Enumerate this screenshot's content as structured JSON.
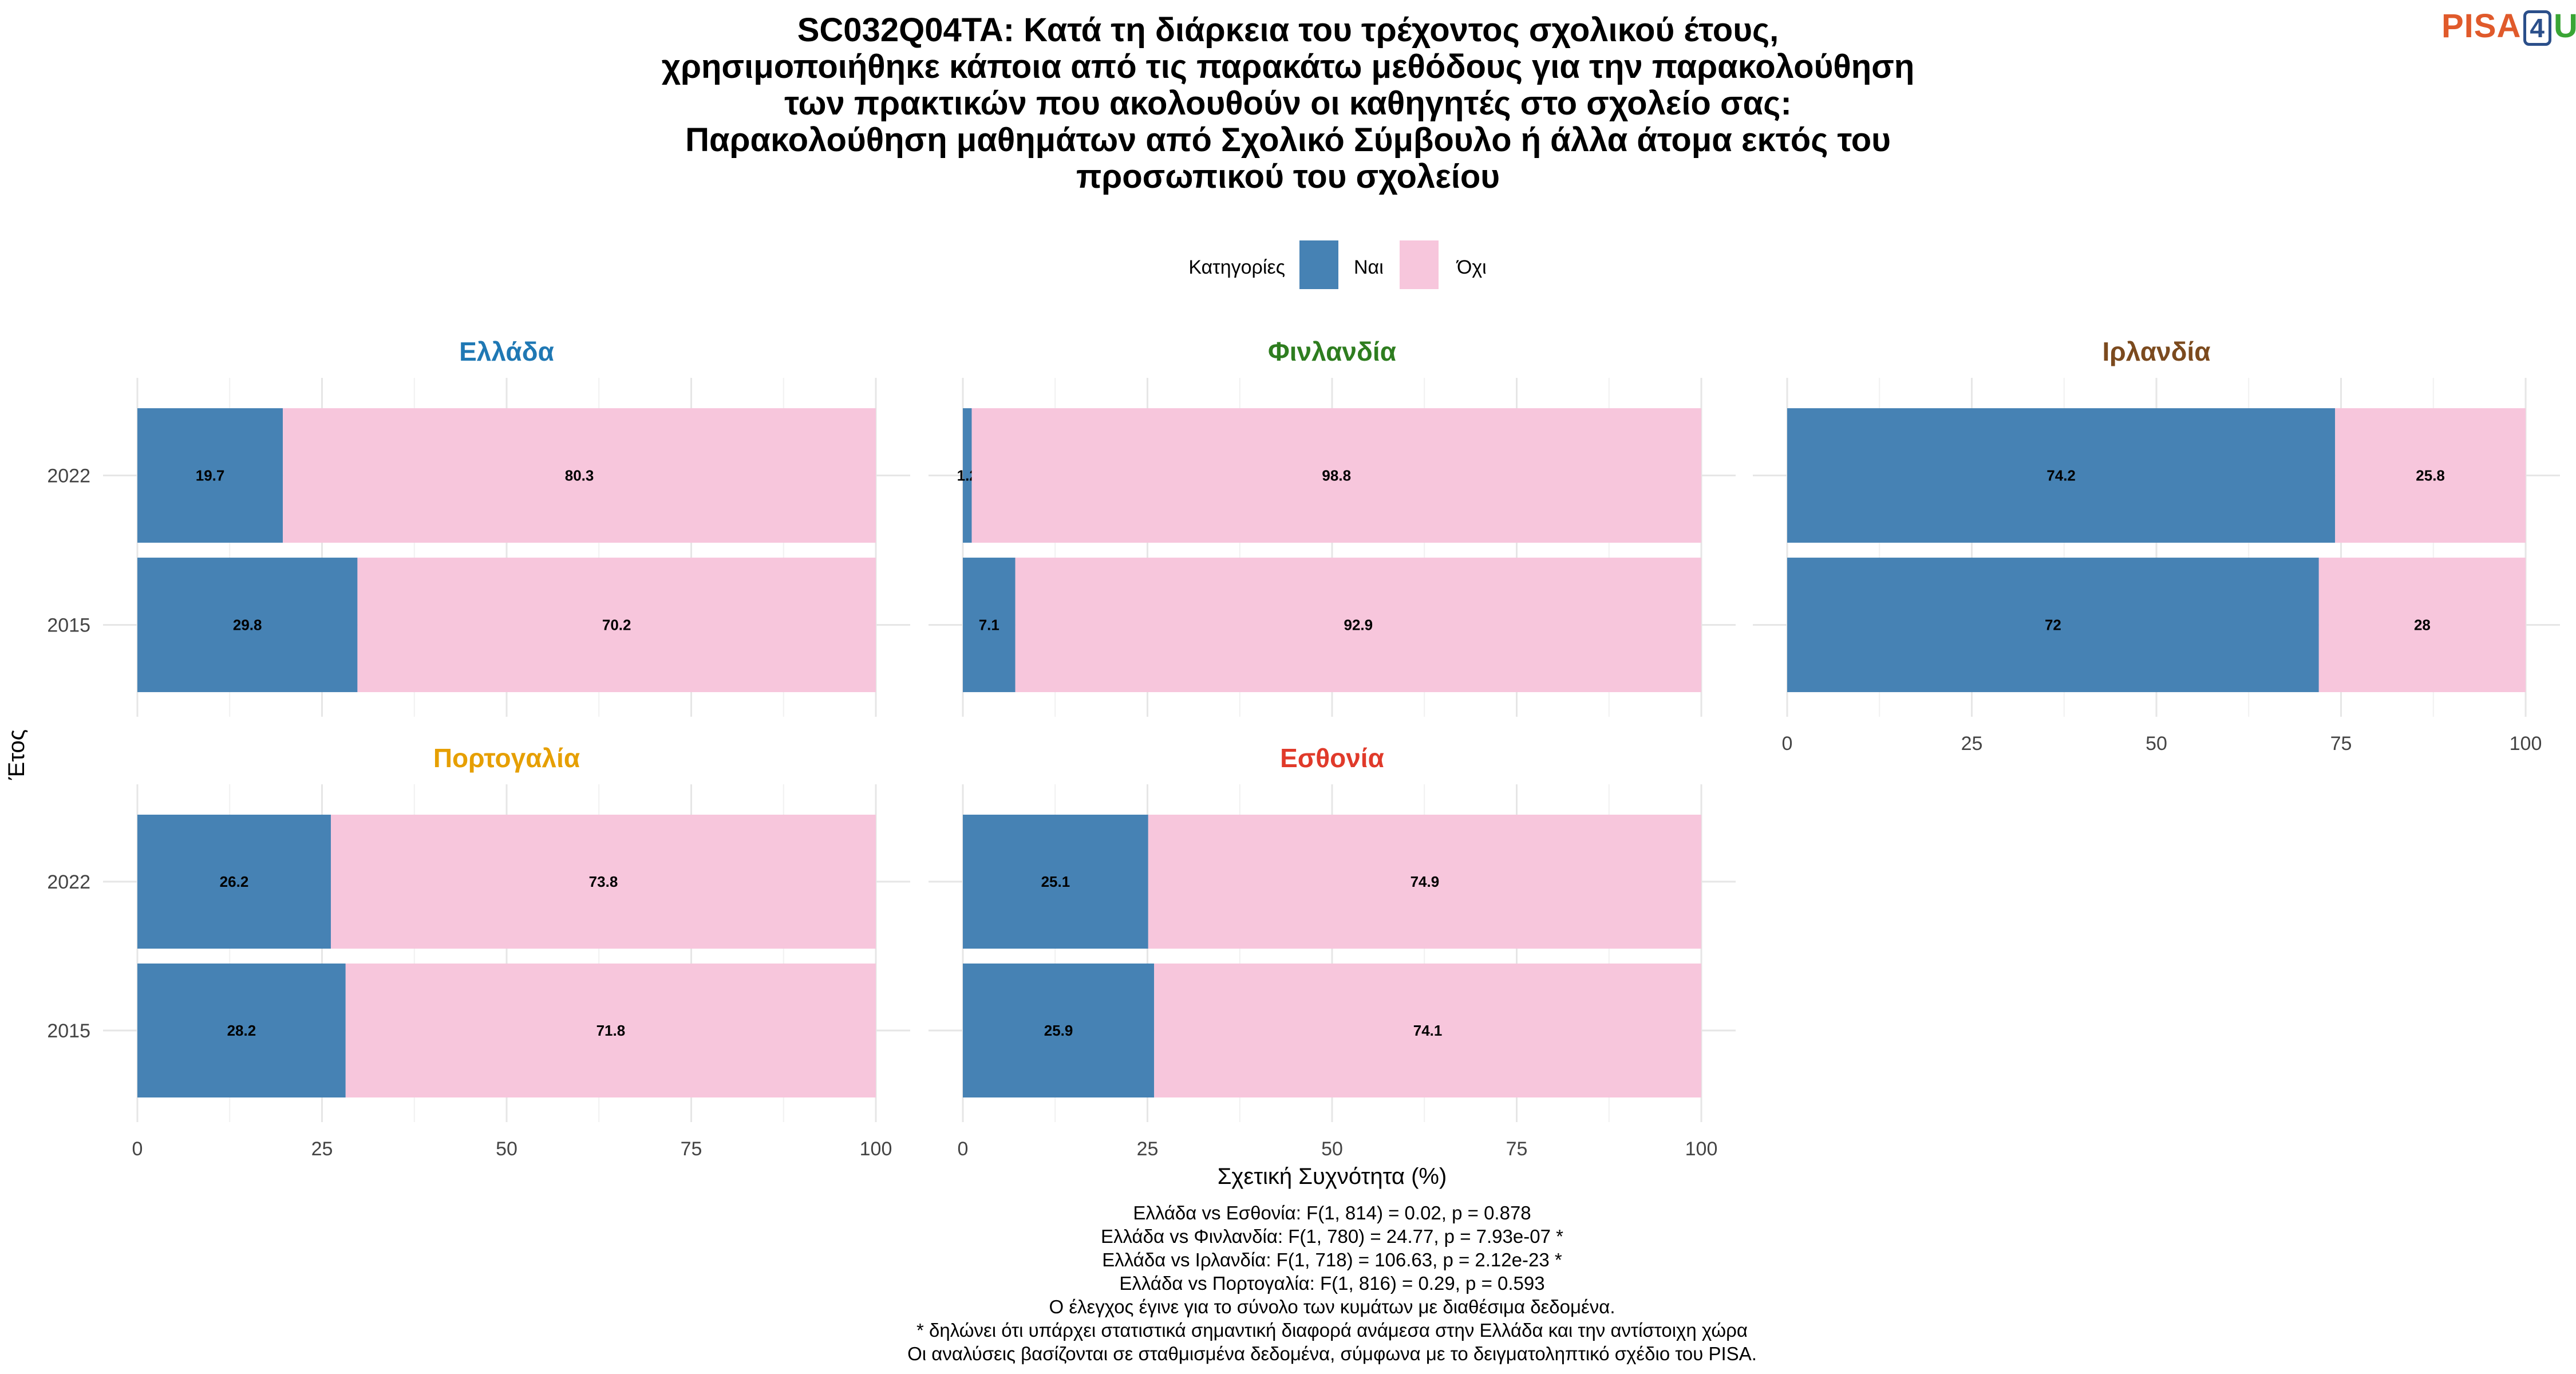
{
  "logo": {
    "text_pisa": "PISA",
    "text_four": "4",
    "text_u": "U"
  },
  "chart_data": {
    "type": "bar",
    "orientation": "horizontal",
    "stacked": true,
    "title_lines": [
      "SC032Q04TA: Κατά τη διάρκεια του τρέχοντος σχολικού έτους,",
      "χρησιμοποιήθηκε κάποια από τις παρακάτω μεθόδους για την παρακολούθηση",
      "των πρακτικών που ακολουθούν οι καθηγητές στο σχολείο σας:",
      "Παρακολούθηση μαθημάτων από Σχολικό Σύμβουλο ή άλλα άτομα εκτός του",
      "προσωπικού του σχολείου"
    ],
    "legend": {
      "title": "Κατηγορίες",
      "placement": "top",
      "items": [
        {
          "name": "Ναι",
          "color": "#4682b4"
        },
        {
          "name": "Όχι",
          "color": "#f7c6dc"
        }
      ]
    },
    "xlabel": "Σχετική Συχνότητα (%)",
    "ylabel": "Έτος",
    "xlim": [
      0,
      100
    ],
    "xticks": [
      "0",
      "25",
      "50",
      "75",
      "100"
    ],
    "categories": [
      "2022",
      "2015"
    ],
    "grid": true,
    "panels": [
      {
        "name": "Ελλάδα",
        "color": "#1f78b4",
        "rows": [
          {
            "year": "2022",
            "values": [
              19.7,
              80.3
            ],
            "labels": [
              "19.7",
              "80.3"
            ]
          },
          {
            "year": "2015",
            "values": [
              29.8,
              70.2
            ],
            "labels": [
              "29.8",
              "70.2"
            ]
          }
        ]
      },
      {
        "name": "Φινλανδία",
        "color": "#2e7d1f",
        "rows": [
          {
            "year": "2022",
            "values": [
              1.2,
              98.8
            ],
            "labels": [
              "1.2",
              "98.8"
            ]
          },
          {
            "year": "2015",
            "values": [
              7.1,
              92.9
            ],
            "labels": [
              "7.1",
              "92.9"
            ]
          }
        ]
      },
      {
        "name": "Ιρλανδία",
        "color": "#7b4a1e",
        "rows": [
          {
            "year": "2022",
            "values": [
              74.2,
              25.8
            ],
            "labels": [
              "74.2",
              "25.8"
            ]
          },
          {
            "year": "2015",
            "values": [
              72,
              28
            ],
            "labels": [
              "72",
              "28"
            ]
          }
        ]
      },
      {
        "name": "Πορτογαλία",
        "color": "#e69f00",
        "rows": [
          {
            "year": "2022",
            "values": [
              26.2,
              73.8
            ],
            "labels": [
              "26.2",
              "73.8"
            ]
          },
          {
            "year": "2015",
            "values": [
              28.2,
              71.8
            ],
            "labels": [
              "28.2",
              "71.8"
            ]
          }
        ]
      },
      {
        "name": "Εσθονία",
        "color": "#e03a2a",
        "rows": [
          {
            "year": "2022",
            "values": [
              25.1,
              74.9
            ],
            "labels": [
              "25.1",
              "74.9"
            ]
          },
          {
            "year": "2015",
            "values": [
              25.9,
              74.1
            ],
            "labels": [
              "25.9",
              "74.1"
            ]
          }
        ]
      }
    ],
    "caption_lines": [
      "Ελλάδα vs Εσθονία: F(1, 814) = 0.02, p = 0.878",
      "Ελλάδα vs Φινλανδία: F(1, 780) = 24.77, p = 7.93e-07 *",
      "Ελλάδα vs Ιρλανδία: F(1, 718) = 106.63, p = 2.12e-23 *",
      "Ελλάδα vs Πορτογαλία: F(1, 816) = 0.29, p = 0.593",
      "Ο έλεγχος έγινε για το σύνολο των κυμάτων με διαθέσιμα δεδομένα.",
      "* δηλώνει ότι υπάρχει στατιστικά σημαντική διαφορά ανάμεσα στην Ελλάδα και την αντίστοιχη χώρα",
      "Οι αναλύσεις βασίζονται σε σταθμισμένα δεδομένα, σύμφωνα με το δειγματοληπτικό σχέδιο του PISA."
    ]
  }
}
